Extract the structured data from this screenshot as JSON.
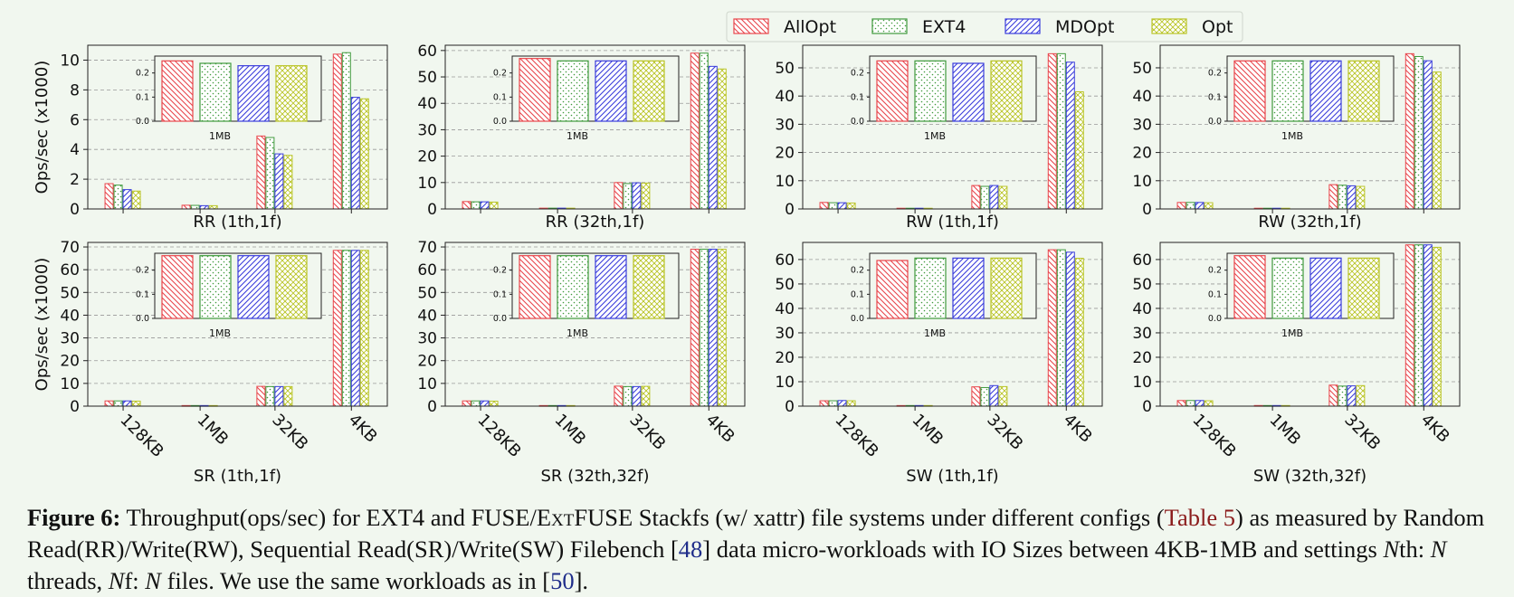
{
  "colors": {
    "AllOpt": "#e8454b",
    "EXT4": "#3f9a3c",
    "MDOpt": "#3a3ddb",
    "Opt": "#b9c427",
    "background": "#f1f7ef"
  },
  "legend": {
    "placement": "top-right",
    "items": [
      {
        "name": "AllOpt",
        "hatch": "diag-back"
      },
      {
        "name": "EXT4",
        "hatch": "dots"
      },
      {
        "name": "MDOpt",
        "hatch": "diag-fwd"
      },
      {
        "name": "Opt",
        "hatch": "cross"
      }
    ]
  },
  "ylabel": "Ops/sec (x1000)",
  "categories": [
    "128KB",
    "1MB",
    "32KB",
    "4KB"
  ],
  "inset": {
    "xlabel": "1MB",
    "yticks": [
      "0.0",
      "0.1",
      "0.2"
    ],
    "ylim": [
      0,
      0.27
    ]
  },
  "chart_data": [
    {
      "type": "bar",
      "title": "RR (1th,1f)",
      "ylim": [
        0,
        11
      ],
      "yticks": [
        0,
        2,
        4,
        6,
        8,
        10
      ],
      "categories": [
        "128KB",
        "1MB",
        "32KB",
        "4KB"
      ],
      "series": [
        {
          "name": "AllOpt",
          "values": [
            1.7,
            0.25,
            4.9,
            10.4
          ]
        },
        {
          "name": "EXT4",
          "values": [
            1.6,
            0.24,
            4.8,
            10.5
          ]
        },
        {
          "name": "MDOpt",
          "values": [
            1.3,
            0.22,
            3.7,
            7.5
          ]
        },
        {
          "name": "Opt",
          "values": [
            1.2,
            0.22,
            3.6,
            7.4
          ]
        }
      ],
      "inset": [
        0.25,
        0.24,
        0.23,
        0.23
      ]
    },
    {
      "type": "bar",
      "title": "RR (32th,1f)",
      "ylim": [
        0,
        62
      ],
      "yticks": [
        0,
        10,
        20,
        30,
        40,
        50,
        60
      ],
      "categories": [
        "128KB",
        "1MB",
        "32KB",
        "4KB"
      ],
      "series": [
        {
          "name": "AllOpt",
          "values": [
            2.8,
            0.3,
            10,
            59
          ]
        },
        {
          "name": "EXT4",
          "values": [
            2.7,
            0.3,
            9.6,
            59
          ]
        },
        {
          "name": "MDOpt",
          "values": [
            2.7,
            0.3,
            9.9,
            54
          ]
        },
        {
          "name": "Opt",
          "values": [
            2.6,
            0.3,
            9.8,
            53
          ]
        }
      ],
      "inset": [
        0.26,
        0.25,
        0.25,
        0.25
      ]
    },
    {
      "type": "bar",
      "title": "RW (1th,1f)",
      "ylim": [
        0,
        58
      ],
      "yticks": [
        0,
        10,
        20,
        30,
        40,
        50
      ],
      "categories": [
        "128KB",
        "1MB",
        "32KB",
        "4KB"
      ],
      "series": [
        {
          "name": "AllOpt",
          "values": [
            2.3,
            0.25,
            8.3,
            55
          ]
        },
        {
          "name": "EXT4",
          "values": [
            2.2,
            0.25,
            8.0,
            55
          ]
        },
        {
          "name": "MDOpt",
          "values": [
            2.2,
            0.25,
            8.3,
            52
          ]
        },
        {
          "name": "Opt",
          "values": [
            2.1,
            0.25,
            8.0,
            41.5
          ]
        }
      ],
      "inset": [
        0.25,
        0.25,
        0.24,
        0.25
      ]
    },
    {
      "type": "bar",
      "title": "RW (32th,1f)",
      "ylim": [
        0,
        58
      ],
      "yticks": [
        0,
        10,
        20,
        30,
        40,
        50
      ],
      "categories": [
        "128KB",
        "1MB",
        "32KB",
        "4KB"
      ],
      "series": [
        {
          "name": "AllOpt",
          "values": [
            2.3,
            0.25,
            8.6,
            55
          ]
        },
        {
          "name": "EXT4",
          "values": [
            2.3,
            0.25,
            8.4,
            54
          ]
        },
        {
          "name": "MDOpt",
          "values": [
            2.3,
            0.25,
            8.2,
            52.5
          ]
        },
        {
          "name": "Opt",
          "values": [
            2.2,
            0.25,
            8.0,
            48.5
          ]
        }
      ],
      "inset": [
        0.25,
        0.25,
        0.25,
        0.25
      ]
    },
    {
      "type": "bar",
      "title": "SR (1th,1f)",
      "ylim": [
        0,
        72
      ],
      "yticks": [
        0,
        10,
        20,
        30,
        40,
        50,
        60,
        70
      ],
      "categories": [
        "128KB",
        "1MB",
        "32KB",
        "4KB"
      ],
      "series": [
        {
          "name": "AllOpt",
          "values": [
            2.3,
            0.26,
            8.7,
            68.5
          ]
        },
        {
          "name": "EXT4",
          "values": [
            2.3,
            0.26,
            8.6,
            68.5
          ]
        },
        {
          "name": "MDOpt",
          "values": [
            2.3,
            0.26,
            8.6,
            68.5
          ]
        },
        {
          "name": "Opt",
          "values": [
            2.2,
            0.26,
            8.6,
            68.5
          ]
        }
      ],
      "inset": [
        0.26,
        0.26,
        0.26,
        0.26
      ]
    },
    {
      "type": "bar",
      "title": "SR (32th,32f)",
      "ylim": [
        0,
        72
      ],
      "yticks": [
        0,
        10,
        20,
        30,
        40,
        50,
        60,
        70
      ],
      "categories": [
        "128KB",
        "1MB",
        "32KB",
        "4KB"
      ],
      "series": [
        {
          "name": "AllOpt",
          "values": [
            2.3,
            0.26,
            8.8,
            69
          ]
        },
        {
          "name": "EXT4",
          "values": [
            2.3,
            0.26,
            8.6,
            69
          ]
        },
        {
          "name": "MDOpt",
          "values": [
            2.3,
            0.26,
            8.6,
            69
          ]
        },
        {
          "name": "Opt",
          "values": [
            2.2,
            0.26,
            8.7,
            69
          ]
        }
      ],
      "inset": [
        0.26,
        0.26,
        0.26,
        0.26
      ]
    },
    {
      "type": "bar",
      "title": "SW (1th,1f)",
      "ylim": [
        0,
        67
      ],
      "yticks": [
        0,
        10,
        20,
        30,
        40,
        50,
        60
      ],
      "categories": [
        "128KB",
        "1MB",
        "32KB",
        "4KB"
      ],
      "series": [
        {
          "name": "AllOpt",
          "values": [
            2.2,
            0.24,
            7.9,
            64
          ]
        },
        {
          "name": "EXT4",
          "values": [
            2.2,
            0.25,
            7.6,
            64
          ]
        },
        {
          "name": "MDOpt",
          "values": [
            2.3,
            0.25,
            8.4,
            63
          ]
        },
        {
          "name": "Opt",
          "values": [
            2.2,
            0.25,
            8.0,
            60.5
          ]
        }
      ],
      "inset": [
        0.24,
        0.25,
        0.25,
        0.25
      ]
    },
    {
      "type": "bar",
      "title": "SW (32th,32f)",
      "ylim": [
        0,
        67
      ],
      "yticks": [
        0,
        10,
        20,
        30,
        40,
        50,
        60
      ],
      "categories": [
        "128KB",
        "1MB",
        "32KB",
        "4KB"
      ],
      "series": [
        {
          "name": "AllOpt",
          "values": [
            2.3,
            0.26,
            8.6,
            66
          ]
        },
        {
          "name": "EXT4",
          "values": [
            2.3,
            0.25,
            8.2,
            66
          ]
        },
        {
          "name": "MDOpt",
          "values": [
            2.3,
            0.25,
            8.3,
            66
          ]
        },
        {
          "name": "Opt",
          "values": [
            2.2,
            0.25,
            8.4,
            65
          ]
        }
      ],
      "inset": [
        0.26,
        0.25,
        0.25,
        0.25
      ]
    }
  ],
  "caption": {
    "label": "Figure 6:",
    "part1": "Throughput(ops/sec) for EXT4 and FUSE/E",
    "part1_sc": "xt",
    "part1b": "FUSE Stackfs (w/ xattr) file systems under different configs (",
    "table_ref": "Table 5",
    "part2": ") as measured by Random Read(RR)/Write(RW), Sequential Read(SR)/Write(SW) Filebench [",
    "cite1": "48",
    "part3": "] data micro-workloads with IO Sizes between 4KB-1MB and settings ",
    "n1": "N",
    "part4": "th: ",
    "n2": "N",
    "part5": " threads, ",
    "n3": "N",
    "part6": "f: ",
    "n4": "N",
    "part7": " files. We use the same workloads as in [",
    "cite2": "50",
    "part8": "]."
  }
}
